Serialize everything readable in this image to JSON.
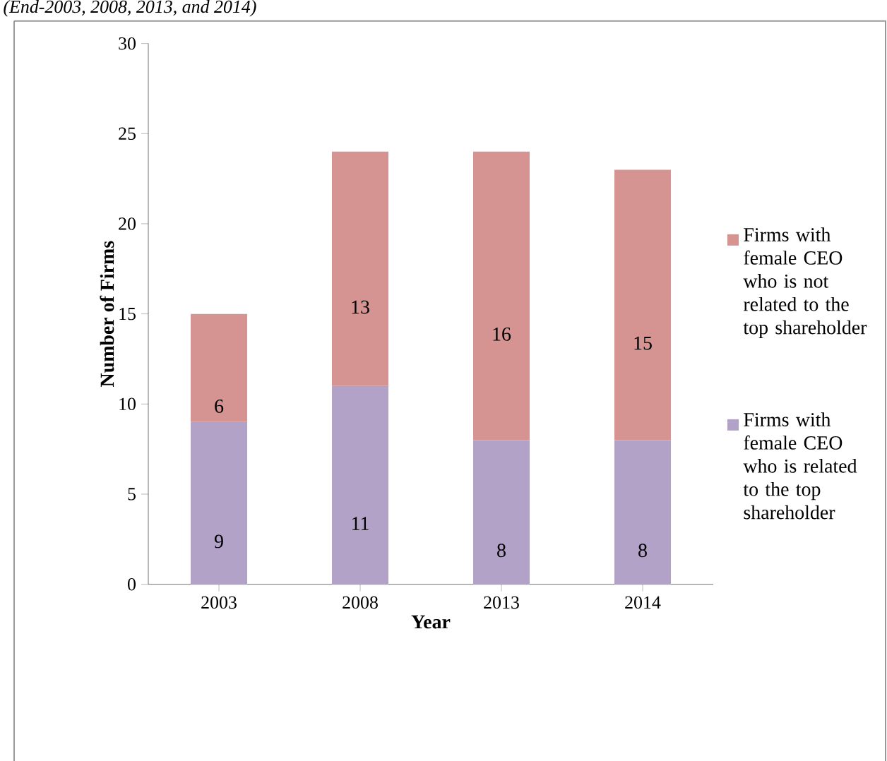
{
  "chart_data": {
    "type": "bar",
    "subtitle": "(End-2003, 2008, 2013, and 2014)",
    "xlabel": "Year",
    "ylabel": "Number of Firms",
    "categories": [
      "2003",
      "2008",
      "2013",
      "2014"
    ],
    "stacked": true,
    "data_labels": true,
    "legend": "right",
    "ylim": [
      0,
      30
    ],
    "yticks": [
      0,
      5,
      10,
      15,
      20,
      25,
      30
    ],
    "series": [
      {
        "name": "Firms with female CEO who is related to the top shareholder",
        "color": "#b3a2c7",
        "values": [
          9,
          11,
          8,
          8
        ]
      },
      {
        "name": "Firms with female CEO who is not related to the top shareholder",
        "color": "#d59491",
        "values": [
          6,
          13,
          16,
          15
        ]
      }
    ]
  }
}
